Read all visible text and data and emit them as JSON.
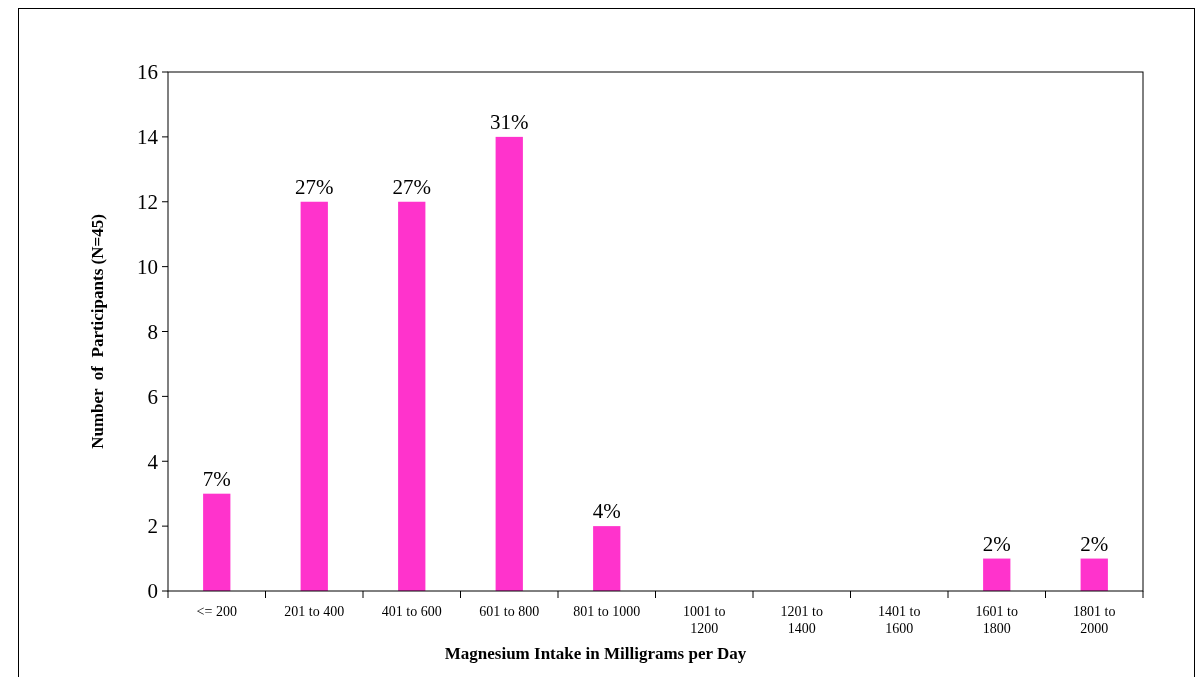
{
  "chart_data": {
    "type": "bar",
    "xlabel": "Magnesium Intake in Milligrams per Day",
    "ylabel": "Number  of  Participants (N=45)",
    "categories": [
      "<= 200",
      "201 to 400",
      "401 to 600",
      "601 to 800",
      "801 to 1000",
      "1001 to 1200",
      "1201 to 1400",
      "1401 to 1600",
      "1601 to 1800",
      "1801 to 2000"
    ],
    "values": [
      3,
      12,
      12,
      14,
      2,
      0,
      0,
      0,
      1,
      1
    ],
    "annotations": [
      {
        "text": "7%",
        "x": "<= 200",
        "y": 3
      },
      {
        "text": "27%",
        "x": "201 to 400",
        "y": 12
      },
      {
        "text": "27%",
        "x": "401 to 600",
        "y": 12
      },
      {
        "text": "31%",
        "x": "601 to 800",
        "y": 14
      },
      {
        "text": "4%",
        "x": "801 to 1000",
        "y": 2
      },
      {
        "text": "2%",
        "x": "1601 to 1800",
        "y": 1
      },
      {
        "text": "2%",
        "x": "1801 to 2000",
        "y": 1
      }
    ],
    "color": "#ff33cc",
    "ylim": [
      0,
      16
    ],
    "yticks": [
      0,
      2,
      4,
      6,
      8,
      10,
      12,
      14,
      16
    ],
    "grid": false
  }
}
